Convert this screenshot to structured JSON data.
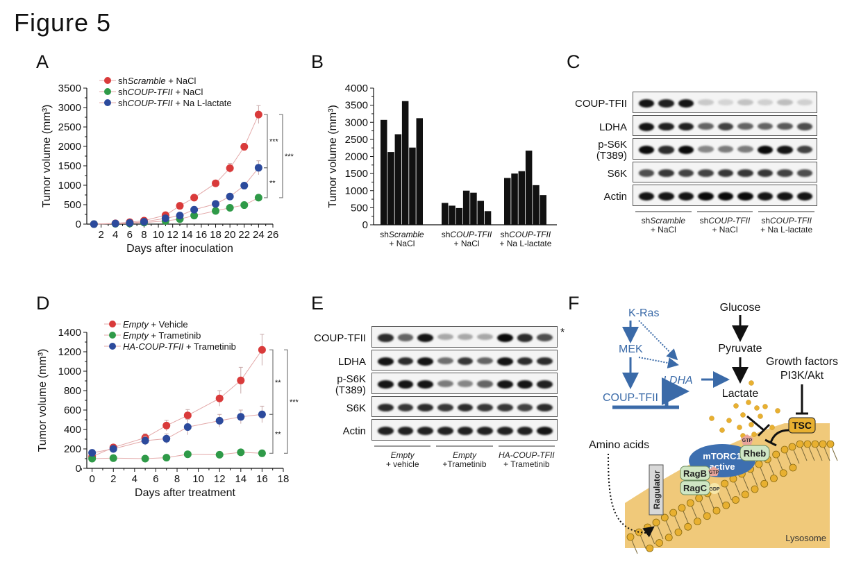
{
  "figure_title": "Figure 5",
  "panels": {
    "A": "A",
    "B": "B",
    "C": "C",
    "D": "D",
    "E": "E",
    "F": "F"
  },
  "chart_data": [
    {
      "id": "A",
      "type": "line",
      "title": "",
      "xlabel": "Days after inoculation",
      "ylabel": "Tumor volume (mm³)",
      "xlim": [
        0,
        26
      ],
      "ylim": [
        0,
        3500
      ],
      "xticks": [
        2,
        4,
        6,
        8,
        10,
        12,
        14,
        16,
        18,
        20,
        22,
        24,
        26
      ],
      "yticks": [
        0,
        500,
        1000,
        1500,
        2000,
        2500,
        3000,
        3500
      ],
      "legend_position": "top-left",
      "x": [
        1,
        4,
        6,
        8,
        11,
        13,
        15,
        18,
        20,
        22,
        24
      ],
      "series": [
        {
          "name_prefix": "sh",
          "name_italic": "Scramble",
          "name_suffix": " + NaCl",
          "color": "#d93a3a",
          "values": [
            0,
            20,
            50,
            90,
            230,
            470,
            680,
            1050,
            1440,
            1990,
            2820
          ],
          "errors": [
            0,
            10,
            15,
            20,
            40,
            50,
            60,
            70,
            120,
            90,
            230
          ]
        },
        {
          "name_prefix": "sh",
          "name_italic": "COUP-TFII",
          "name_suffix": " + NaCl",
          "color": "#2f9a48",
          "values": [
            0,
            10,
            15,
            40,
            80,
            130,
            220,
            340,
            420,
            490,
            680
          ],
          "errors": [
            0,
            5,
            5,
            10,
            20,
            20,
            30,
            30,
            40,
            40,
            60
          ]
        },
        {
          "name_prefix": "sh",
          "name_italic": "COUP-TFII",
          "name_suffix": " + Na L-lactate",
          "color": "#2c4a9c",
          "values": [
            0,
            15,
            30,
            60,
            150,
            220,
            370,
            520,
            710,
            990,
            1450
          ],
          "errors": [
            0,
            8,
            10,
            15,
            30,
            30,
            40,
            50,
            60,
            70,
            180
          ]
        }
      ],
      "significance": [
        {
          "label": "***",
          "between": [
            "shScramble + NaCl",
            "shCOUP-TFII + Na L-lactate"
          ]
        },
        {
          "label": "**",
          "between": [
            "shCOUP-TFII + Na L-lactate",
            "shCOUP-TFII + NaCl"
          ]
        },
        {
          "label": "***",
          "between": [
            "shScramble + NaCl",
            "shCOUP-TFII + NaCl"
          ]
        }
      ]
    },
    {
      "id": "B",
      "type": "bar",
      "title": "",
      "xlabel": "",
      "ylabel": "Tumor volume (mm³)",
      "ylim": [
        0,
        4000
      ],
      "yticks": [
        0,
        500,
        1000,
        1500,
        2000,
        2500,
        3000,
        3500,
        4000
      ],
      "color": "#111111",
      "groups": [
        {
          "label_prefix": "sh",
          "label_italic": "Scramble",
          "label_line2": "+ NaCl",
          "values": [
            3070,
            2130,
            2650,
            3620,
            2260,
            3120
          ]
        },
        {
          "label_prefix": "sh",
          "label_italic": "COUP-TFII",
          "label_line2": "+ NaCl",
          "values": [
            640,
            560,
            490,
            1000,
            940,
            700,
            400
          ]
        },
        {
          "label_prefix": "sh",
          "label_italic": "COUP-TFII",
          "label_line2": "+ Na L-lactate",
          "values": [
            1370,
            1500,
            1570,
            2170,
            1160,
            870
          ]
        }
      ]
    },
    {
      "id": "D",
      "type": "line",
      "title": "",
      "xlabel": "Days after treatment",
      "ylabel": "Tumor volume (mm³)",
      "xlim": [
        -0.5,
        18
      ],
      "ylim": [
        0,
        1400
      ],
      "xticks": [
        0,
        2,
        4,
        6,
        8,
        10,
        12,
        14,
        16,
        18
      ],
      "yticks": [
        0,
        200,
        400,
        600,
        800,
        1000,
        1200,
        1400
      ],
      "legend_position": "top-left",
      "x": [
        0,
        2,
        5,
        7,
        9,
        12,
        14,
        16
      ],
      "series": [
        {
          "name_prefix": "",
          "name_italic": "Empty",
          "name_suffix": " + Vehicle",
          "color": "#d93a3a",
          "values": [
            120,
            215,
            315,
            440,
            545,
            720,
            905,
            1220
          ],
          "errors": [
            20,
            30,
            40,
            55,
            60,
            80,
            135,
            160
          ]
        },
        {
          "name_prefix": "",
          "name_italic": "Empty",
          "name_suffix": " + Trametinib",
          "color": "#2f9a48",
          "values": [
            100,
            105,
            100,
            110,
            145,
            140,
            165,
            155
          ],
          "errors": [
            10,
            10,
            10,
            10,
            15,
            15,
            15,
            15
          ]
        },
        {
          "name_prefix": "",
          "name_italic": "HA-COUP-TFII",
          "name_suffix": " + Trametinib",
          "color": "#2c4a9c",
          "values": [
            160,
            200,
            285,
            305,
            425,
            490,
            530,
            555
          ],
          "errors": [
            15,
            25,
            45,
            50,
            80,
            65,
            70,
            85
          ]
        }
      ],
      "significance": [
        {
          "label": "**",
          "between": [
            "Empty + Vehicle",
            "HA-COUP-TFII + Trametinib"
          ]
        },
        {
          "label": "**",
          "between": [
            "HA-COUP-TFII + Trametinib",
            "Empty + Trametinib"
          ]
        },
        {
          "label": "***",
          "between": [
            "Empty + Vehicle",
            "Empty + Trametinib"
          ]
        }
      ]
    }
  ],
  "blots": {
    "C": {
      "rows": [
        {
          "label": "COUP-TFII",
          "intensity": [
            0.95,
            0.9,
            0.95,
            0.15,
            0.1,
            0.18,
            0.12,
            0.2,
            0.12
          ]
        },
        {
          "label": "LDHA",
          "intensity": [
            0.95,
            0.9,
            0.9,
            0.6,
            0.75,
            0.6,
            0.6,
            0.65,
            0.7
          ]
        },
        {
          "label": "p-S6K\n(T389)",
          "intensity": [
            1.0,
            0.85,
            1.0,
            0.45,
            0.5,
            0.5,
            1.0,
            0.95,
            0.75
          ]
        },
        {
          "label": "S6K",
          "intensity": [
            0.7,
            0.8,
            0.75,
            0.75,
            0.8,
            0.8,
            0.8,
            0.75,
            0.7
          ]
        },
        {
          "label": "Actin",
          "intensity": [
            0.95,
            0.95,
            0.95,
            1.0,
            1.0,
            1.0,
            0.95,
            0.95,
            0.95
          ]
        }
      ],
      "groups": [
        {
          "prefix": "sh",
          "italic": "Scramble",
          "line2": "+ NaCl"
        },
        {
          "prefix": "sh",
          "italic": "COUP-TFII",
          "line2": "+ NaCl"
        },
        {
          "prefix": "sh",
          "italic": "COUP-TFII",
          "line2": "+ Na L-lactate"
        }
      ]
    },
    "E": {
      "rows": [
        {
          "label": "COUP-TFII",
          "intensity": [
            0.85,
            0.6,
            0.95,
            0.3,
            0.3,
            0.3,
            1.0,
            0.85,
            0.7
          ]
        },
        {
          "label": "LDHA",
          "intensity": [
            0.95,
            0.85,
            0.95,
            0.55,
            0.8,
            0.6,
            0.95,
            0.85,
            0.85
          ]
        },
        {
          "label": "p-S6K\n(T389)",
          "intensity": [
            0.95,
            0.95,
            0.95,
            0.5,
            0.45,
            0.6,
            0.95,
            0.95,
            0.9
          ]
        },
        {
          "label": "S6K",
          "intensity": [
            0.85,
            0.8,
            0.85,
            0.8,
            0.85,
            0.8,
            0.8,
            0.75,
            0.85
          ]
        },
        {
          "label": "Actin",
          "intensity": [
            0.9,
            0.9,
            0.9,
            0.9,
            0.9,
            0.9,
            0.9,
            0.9,
            0.95
          ]
        }
      ],
      "asterisk": "*",
      "groups": [
        {
          "prefix": "",
          "italic": "Empty",
          "line2": "+ vehicle"
        },
        {
          "prefix": "",
          "italic": "Empty",
          "line2": "+Trametinib"
        },
        {
          "prefix": "",
          "italic": "HA-COUP-TFII",
          "line2": "+ Trametinib"
        }
      ]
    }
  },
  "diagram_F": {
    "kras": "K-Ras",
    "mek": "MEK",
    "coup": "COUP-TFII",
    "ldha": "LDHA",
    "glucose": "Glucose",
    "pyruvate": "Pyruvate",
    "lactate": "Lactate",
    "growth_factors": "Growth factors",
    "pi3k": "PI3K/Akt",
    "tsc": "TSC",
    "amino_acids": "Amino acids",
    "mtorc1_line1": "mTORC1",
    "mtorc1_line2": "active",
    "rheb": "Rheb",
    "gtp": "GTP",
    "gdp": "GDP",
    "ragb": "RagB",
    "ragc": "RagC",
    "ragulator": "Ragulator",
    "lysosome": "Lysosome",
    "colors": {
      "blue": "#3a6aa8",
      "gold": "#e8b030",
      "lysosome": "#f0c97a",
      "green": "#cfe6c4",
      "mtorc": "#3d6fb0",
      "pink": "#e8a39a"
    }
  }
}
